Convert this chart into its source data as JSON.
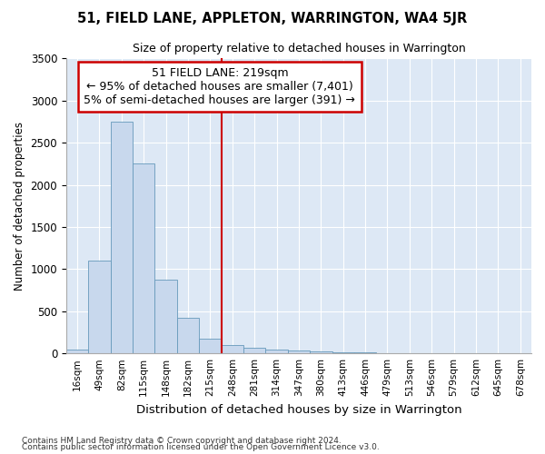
{
  "title": "51, FIELD LANE, APPLETON, WARRINGTON, WA4 5JR",
  "subtitle": "Size of property relative to detached houses in Warrington",
  "xlabel": "Distribution of detached houses by size in Warrington",
  "ylabel": "Number of detached properties",
  "bar_labels": [
    "16sqm",
    "49sqm",
    "82sqm",
    "115sqm",
    "148sqm",
    "182sqm",
    "215sqm",
    "248sqm",
    "281sqm",
    "314sqm",
    "347sqm",
    "380sqm",
    "413sqm",
    "446sqm",
    "479sqm",
    "513sqm",
    "546sqm",
    "579sqm",
    "612sqm",
    "645sqm",
    "678sqm"
  ],
  "bar_values": [
    50,
    1100,
    2750,
    2250,
    870,
    420,
    175,
    100,
    65,
    45,
    35,
    25,
    15,
    8,
    5,
    3,
    2,
    1,
    1,
    0,
    0
  ],
  "bar_color": "#c8d8ed",
  "bar_edge_color": "#6699bb",
  "vline_x": 6.5,
  "vline_color": "#cc0000",
  "annotation_line1": "51 FIELD LANE: 219sqm",
  "annotation_line2": "← 95% of detached houses are smaller (7,401)",
  "annotation_line3": "5% of semi-detached houses are larger (391) →",
  "annotation_box_color": "#ffffff",
  "annotation_box_edge": "#cc0000",
  "ylim": [
    0,
    3500
  ],
  "yticks": [
    0,
    500,
    1000,
    1500,
    2000,
    2500,
    3000,
    3500
  ],
  "bg_color": "#dde8f5",
  "grid_color": "#ffffff",
  "fig_bg": "#ffffff",
  "footer1": "Contains HM Land Registry data © Crown copyright and database right 2024.",
  "footer2": "Contains public sector information licensed under the Open Government Licence v3.0."
}
